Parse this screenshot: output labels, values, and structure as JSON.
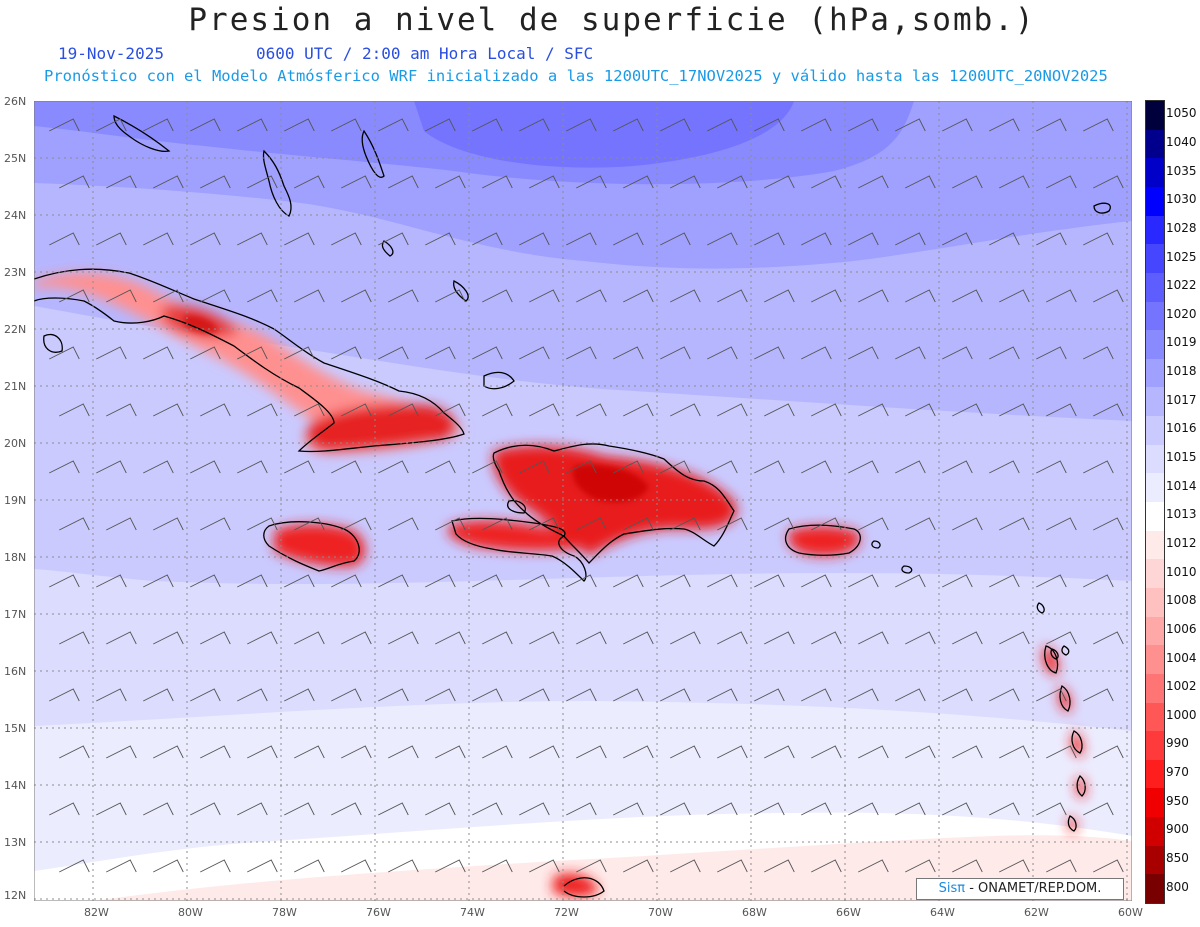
{
  "title": "Presion a nivel de superficie (hPa,somb.)",
  "date": "19-Nov-2025",
  "time_info": "0600 UTC / 2:00 am Hora Local / SFC",
  "model_info": "Pronóstico con el Modelo Atmósferico WRF inicializado a las 1200UTC_17NOV2025 y válido hasta las  1200UTC_20NOV2025",
  "lat_labels": [
    "26N",
    "25N",
    "24N",
    "23N",
    "22N",
    "21N",
    "20N",
    "19N",
    "18N",
    "17N",
    "16N",
    "15N",
    "14N",
    "13N",
    "12N"
  ],
  "lon_labels": [
    "82W",
    "80W",
    "78W",
    "76W",
    "74W",
    "72W",
    "70W",
    "68W",
    "66W",
    "64W",
    "62W",
    "60W"
  ],
  "colorbar": {
    "levels": [
      "1050",
      "1040",
      "1035",
      "1030",
      "1028",
      "1025",
      "1022",
      "1020",
      "1019",
      "1018",
      "1017",
      "1016",
      "1015",
      "1014",
      "1013",
      "1012",
      "1010",
      "1008",
      "1006",
      "1004",
      "1002",
      "1000",
      "990",
      "970",
      "950",
      "900",
      "850",
      "800"
    ],
    "colors": [
      "#00003c",
      "#00008c",
      "#0000c8",
      "#0000ff",
      "#2828ff",
      "#4646ff",
      "#5e5eff",
      "#7474ff",
      "#8a8aff",
      "#a0a0ff",
      "#b6b6ff",
      "#cacaff",
      "#dcdcff",
      "#ececff",
      "#ffffff",
      "#ffeaea",
      "#ffd6d6",
      "#ffc0c0",
      "#ffa8a8",
      "#ff9090",
      "#ff7474",
      "#ff5656",
      "#ff3a3a",
      "#ff1e1e",
      "#f00000",
      "#d00000",
      "#a80000",
      "#780000"
    ]
  },
  "credit": {
    "sis": "Sisπ",
    "org": "- ONAMET/REP.DOM."
  }
}
